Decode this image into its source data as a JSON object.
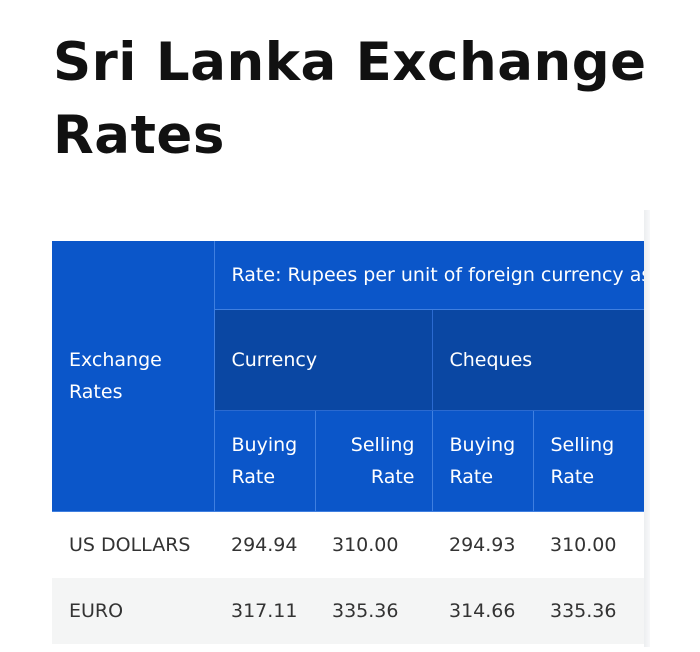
{
  "page": {
    "title": "Sri Lanka Exchange Rates"
  },
  "table": {
    "header": {
      "row_label": "Exchange Rates",
      "rate_caption": "Rate: Rupees per unit of foreign currency as",
      "groups": [
        {
          "label": "Currency"
        },
        {
          "label": "Cheques"
        }
      ],
      "subcolumns": [
        {
          "label": "Buying Rate"
        },
        {
          "label": "Selling Rate"
        },
        {
          "label": "Buying Rate"
        },
        {
          "label": "Selling Rate"
        }
      ]
    },
    "rows": [
      {
        "name": "US DOLLARS",
        "values": [
          "294.94",
          "310.00",
          "294.93",
          "310.00"
        ]
      },
      {
        "name": "EURO",
        "values": [
          "317.11",
          "335.36",
          "314.66",
          "335.36"
        ]
      }
    ]
  }
}
